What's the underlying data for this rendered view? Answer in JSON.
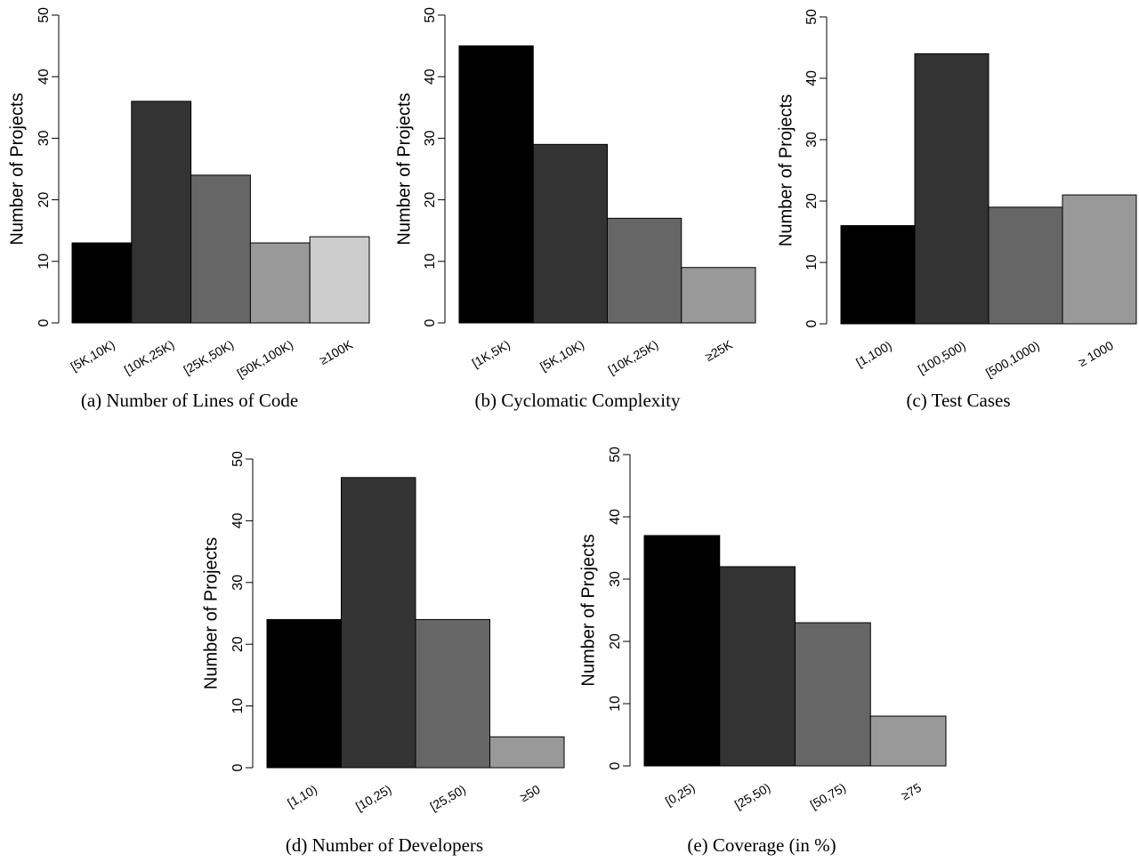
{
  "chart_data": [
    {
      "type": "bar",
      "title": "(a) Number of Lines of Code",
      "xlabel": "",
      "ylabel": "Number of Projects",
      "ylim": [
        0,
        50
      ],
      "yticks": [
        0,
        10,
        20,
        30,
        40,
        50
      ],
      "categories": [
        "[5K,10K)",
        "[10K,25K)",
        "[25K,50K)",
        "[50K,100K)",
        "≥100K"
      ],
      "values": [
        13,
        36,
        24,
        13,
        14
      ],
      "colors": [
        "#000000",
        "#333333",
        "#666666",
        "#999999",
        "#cccccc"
      ]
    },
    {
      "type": "bar",
      "title": "(b) Cyclomatic Complexity",
      "xlabel": "",
      "ylabel": "Number of Projects",
      "ylim": [
        0,
        50
      ],
      "yticks": [
        0,
        10,
        20,
        30,
        40,
        50
      ],
      "categories": [
        "[1K,5K)",
        "[5K,10K)",
        "[10K,25K)",
        "≥25K"
      ],
      "values": [
        45,
        29,
        17,
        9
      ],
      "colors": [
        "#000000",
        "#333333",
        "#666666",
        "#999999"
      ]
    },
    {
      "type": "bar",
      "title": "(c) Test Cases",
      "xlabel": "",
      "ylabel": "Number of Projects",
      "ylim": [
        0,
        50
      ],
      "yticks": [
        0,
        10,
        20,
        30,
        40,
        50
      ],
      "categories": [
        "[1,100)",
        "[100,500)",
        "[500,1000)",
        "≥ 1000"
      ],
      "values": [
        16,
        44,
        19,
        21
      ],
      "colors": [
        "#000000",
        "#333333",
        "#666666",
        "#999999"
      ]
    },
    {
      "type": "bar",
      "title": "(d) Number of Developers",
      "xlabel": "",
      "ylabel": "Number of Projects",
      "ylim": [
        0,
        50
      ],
      "yticks": [
        0,
        10,
        20,
        30,
        40,
        50
      ],
      "categories": [
        "[1,10)",
        "[10,25)",
        "[25,50)",
        "≥50"
      ],
      "values": [
        24,
        47,
        24,
        5
      ],
      "colors": [
        "#000000",
        "#333333",
        "#666666",
        "#999999"
      ]
    },
    {
      "type": "bar",
      "title": "(e) Coverage (in %)",
      "xlabel": "",
      "ylabel": "Number of Projects",
      "ylim": [
        0,
        50
      ],
      "yticks": [
        0,
        10,
        20,
        30,
        40,
        50
      ],
      "categories": [
        "[0,25)",
        "[25,50)",
        "[50,75)",
        "≥75"
      ],
      "values": [
        37,
        32,
        23,
        8
      ],
      "colors": [
        "#000000",
        "#333333",
        "#666666",
        "#999999"
      ]
    }
  ]
}
